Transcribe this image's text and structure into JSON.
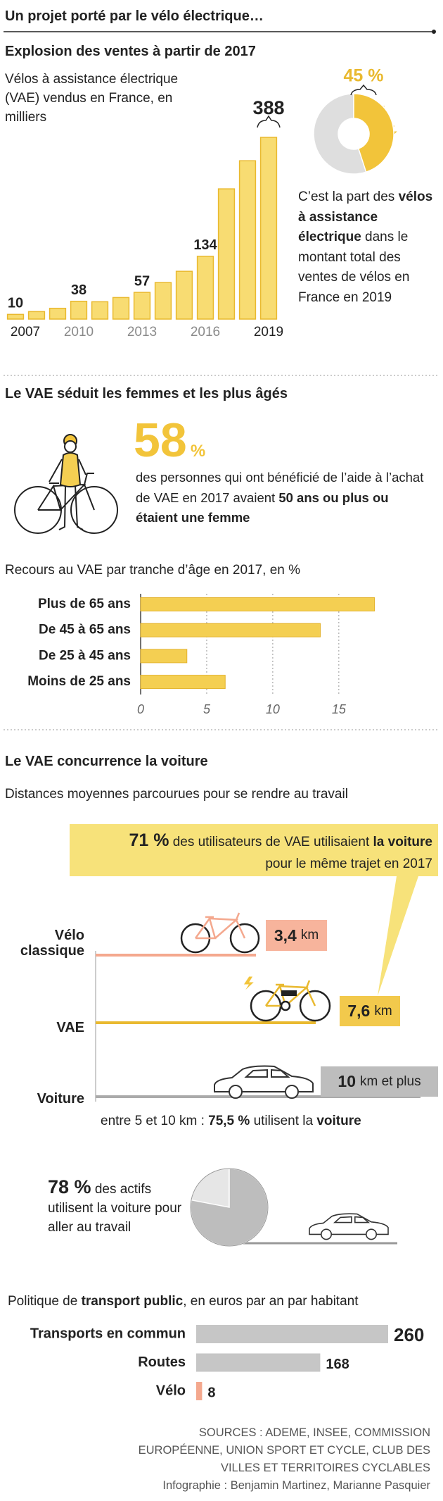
{
  "title": "Un projet porté par le vélo électrique…",
  "chart_data": [
    {
      "type": "bar",
      "title": "Explosion des ventes à partir de 2017",
      "subtitle": "Vélos à assistance électrique (VAE) vendus en France, en milliers",
      "categories": [
        "2007",
        null,
        null,
        "2010",
        null,
        null,
        "2013",
        null,
        null,
        "2016",
        null,
        null,
        "2019"
      ],
      "values": [
        10,
        16,
        23,
        38,
        37,
        46,
        57,
        78,
        102,
        134,
        278,
        338,
        388
      ],
      "value_labels": [
        "10",
        null,
        null,
        "38",
        null,
        null,
        "57",
        null,
        null,
        "134",
        null,
        null,
        "388"
      ],
      "ylim": [
        0,
        400
      ],
      "color": "#f8dc72"
    },
    {
      "type": "pie",
      "values": [
        45
      ],
      "value_labels": [
        "45 %"
      ],
      "colors": [
        "#f2c43a",
        "#dedede"
      ],
      "caption": {
        "before": "C’est la part des",
        "emphasis": "vélos à assistance électrique",
        "after": "dans le montant total des ventes de vélos en France en 2019"
      }
    },
    {
      "type": "hbar",
      "title": "Recours au VAE par tranche d’âge en 2017, en %",
      "categories": [
        "Plus de 65 ans",
        "De 45 à 65 ans",
        "De 25 à 45 ans",
        "Moins de 25 ans"
      ],
      "values": [
        17.7,
        13.6,
        3.5,
        6.4
      ],
      "color": "#f4cf52",
      "xlim": [
        0,
        19
      ],
      "xticks": [
        0,
        5,
        10,
        15
      ],
      "grid": true
    },
    {
      "type": "pie",
      "values": [
        78
      ],
      "value_labels": [
        "78 %"
      ],
      "colors": [
        "#bdbdbd",
        "#e6e6e6"
      ],
      "caption": "des actifs utilisent la voiture pour aller au travail"
    },
    {
      "type": "hbar",
      "title": {
        "before": "Politique de",
        "emphasis": "transport public",
        "after": ", en euros par an par habitant"
      },
      "categories": [
        "Transports en commun",
        "Routes",
        "Vélo"
      ],
      "values": [
        260,
        168,
        8
      ],
      "colors": [
        "#c6c6c6",
        "#c6c6c6",
        "#f4a88e"
      ],
      "xlim": [
        0,
        260
      ]
    }
  ],
  "women": {
    "title": "Le VAE séduit les femmes et les plus âgés",
    "stat": "58",
    "stat_unit": "%",
    "text": "des personnes qui ont bénéficié de l’aide à l’achat de VAE en 2017 avaient",
    "emphasis": "50 ans ou plus ou étaient une femme"
  },
  "car": {
    "title": "Le VAE concurrence la voiture",
    "subtitle": "Distances moyennes parcourues pour se rendre au travail",
    "callout": {
      "value": "71 %",
      "text": "des utilisateurs de VAE utilisaient",
      "emphasis": "la voiture",
      "line2": "pour le même trajet en 2017"
    },
    "rows": [
      {
        "label": "Vélo classique",
        "value": "3,4",
        "unit": "km"
      },
      {
        "label": "VAE",
        "value": "7,6",
        "unit": "km"
      },
      {
        "label": "Voiture",
        "value": "10",
        "unit": "km et plus"
      }
    ],
    "note": {
      "before": "entre 5 et 10 km :",
      "value": "75,5 %",
      "middle": "utilisent la",
      "emphasis": "voiture"
    }
  },
  "sources": [
    "SOURCES : ADEME, INSEE, COMMISSION EUROPÉENNE, UNION SPORT ET CYCLE, CLUB DES VILLES ET TERRITOIRES CYCLABLES",
    "Infographie : Benjamin Martinez, Marianne Pasquier"
  ]
}
